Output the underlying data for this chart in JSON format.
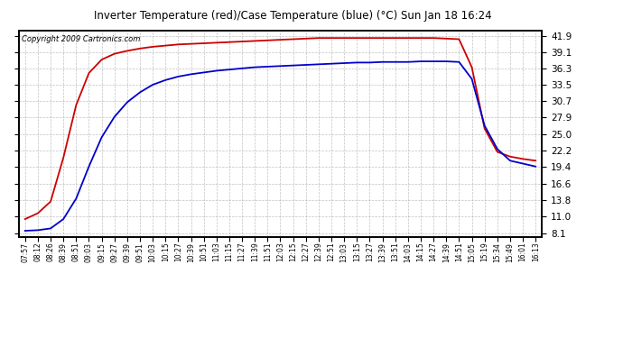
{
  "title": "Inverter Temperature (red)/Case Temperature (blue) (°C) Sun Jan 18 16:24",
  "copyright": "Copyright 2009 Cartronics.com",
  "y_ticks": [
    8.1,
    11.0,
    13.8,
    16.6,
    19.4,
    22.2,
    25.0,
    27.9,
    30.7,
    33.5,
    36.3,
    39.1,
    41.9
  ],
  "y_min": 7.5,
  "y_max": 42.8,
  "red_color": "#cc0000",
  "blue_color": "#0000cc",
  "bg_color": "#ffffff",
  "grid_color": "#999999",
  "x_labels": [
    "07:57",
    "08:12",
    "08:26",
    "08:39",
    "08:51",
    "09:03",
    "09:15",
    "09:27",
    "09:39",
    "09:51",
    "10:03",
    "10:15",
    "10:27",
    "10:39",
    "10:51",
    "11:03",
    "11:15",
    "11:27",
    "11:39",
    "11:51",
    "12:03",
    "12:15",
    "12:27",
    "12:39",
    "12:51",
    "13:03",
    "13:15",
    "13:27",
    "13:39",
    "13:51",
    "14:03",
    "14:15",
    "14:27",
    "14:39",
    "14:51",
    "15:05",
    "15:19",
    "15:34",
    "15:49",
    "16:01",
    "16:13"
  ],
  "red_data": [
    10.5,
    11.5,
    13.5,
    21.0,
    30.0,
    35.5,
    37.8,
    38.8,
    39.3,
    39.7,
    40.0,
    40.2,
    40.4,
    40.5,
    40.6,
    40.7,
    40.8,
    40.9,
    41.0,
    41.1,
    41.2,
    41.3,
    41.4,
    41.5,
    41.5,
    41.5,
    41.5,
    41.5,
    41.5,
    41.5,
    41.5,
    41.5,
    41.5,
    41.4,
    41.3,
    36.5,
    26.0,
    22.0,
    21.2,
    20.8,
    20.5
  ],
  "blue_data": [
    8.5,
    8.6,
    8.9,
    10.5,
    14.0,
    19.5,
    24.5,
    28.0,
    30.5,
    32.2,
    33.5,
    34.3,
    34.9,
    35.3,
    35.6,
    35.9,
    36.1,
    36.3,
    36.5,
    36.6,
    36.7,
    36.8,
    36.9,
    37.0,
    37.1,
    37.2,
    37.3,
    37.3,
    37.4,
    37.4,
    37.4,
    37.5,
    37.5,
    37.5,
    37.4,
    34.5,
    26.5,
    22.5,
    20.5,
    20.0,
    19.5
  ]
}
